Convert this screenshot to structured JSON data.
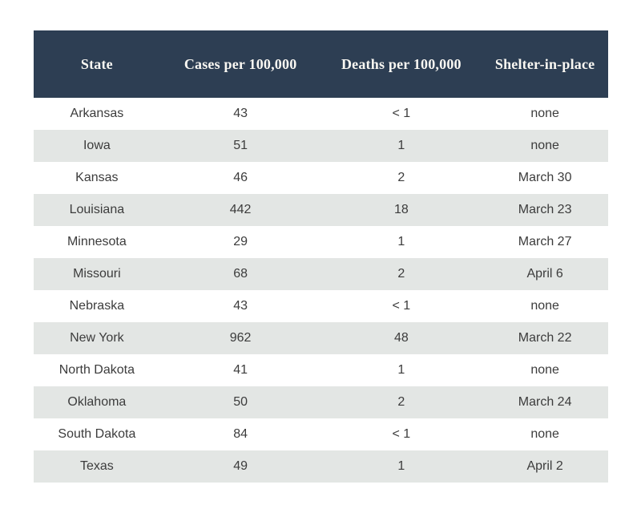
{
  "chart_data": {
    "type": "table",
    "columns": [
      "State",
      "Cases per 100,000",
      "Deaths per 100,000",
      "Shelter-in-place"
    ],
    "rows": [
      [
        "Arkansas",
        "43",
        "< 1",
        "none"
      ],
      [
        "Iowa",
        "51",
        "1",
        "none"
      ],
      [
        "Kansas",
        "46",
        "2",
        "March 30"
      ],
      [
        "Louisiana",
        "442",
        "18",
        "March 23"
      ],
      [
        "Minnesota",
        "29",
        "1",
        "March 27"
      ],
      [
        "Missouri",
        "68",
        "2",
        "April 6"
      ],
      [
        "Nebraska",
        "43",
        "< 1",
        "none"
      ],
      [
        "New York",
        "962",
        "48",
        "March 22"
      ],
      [
        "North Dakota",
        "41",
        "1",
        "none"
      ],
      [
        "Oklahoma",
        "50",
        "2",
        "March 24"
      ],
      [
        "South Dakota",
        "84",
        "< 1",
        "none"
      ],
      [
        "Texas",
        "49",
        "1",
        "April 2"
      ]
    ],
    "layout": {
      "header_background": "#2d3e53",
      "header_text_color": "#f9f7f2",
      "row_alt_background": "#e3e6e4",
      "row_background": "#ffffff",
      "body_text_color": "#3c3c3c",
      "page_background": "#ffffff",
      "alternating_rows": true,
      "text_alignment": "center"
    }
  }
}
